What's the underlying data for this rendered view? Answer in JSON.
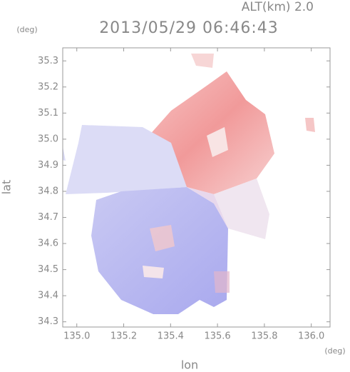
{
  "chart_data": {
    "type": "map",
    "title": "2013/05/29 06:46:43",
    "annotation": "ALT(km) 2.0",
    "xlabel": "lon",
    "ylabel": "lat",
    "xunit": "(deg)",
    "yunit": "(deg)",
    "xlim": [
      134.94,
      136.08
    ],
    "ylim": [
      34.28,
      35.35
    ],
    "xticks": [
      {
        "value": 135,
        "label": "135.0"
      },
      135.2,
      135.4,
      135.6,
      135.8,
      {
        "value": 136,
        "label": "136.0"
      }
    ],
    "yticks": [
      34.3,
      34.4,
      34.5,
      34.6,
      34.7,
      34.8,
      34.9,
      {
        "value": 35,
        "label": "35.0"
      },
      35.1,
      35.2,
      35.3
    ]
  }
}
